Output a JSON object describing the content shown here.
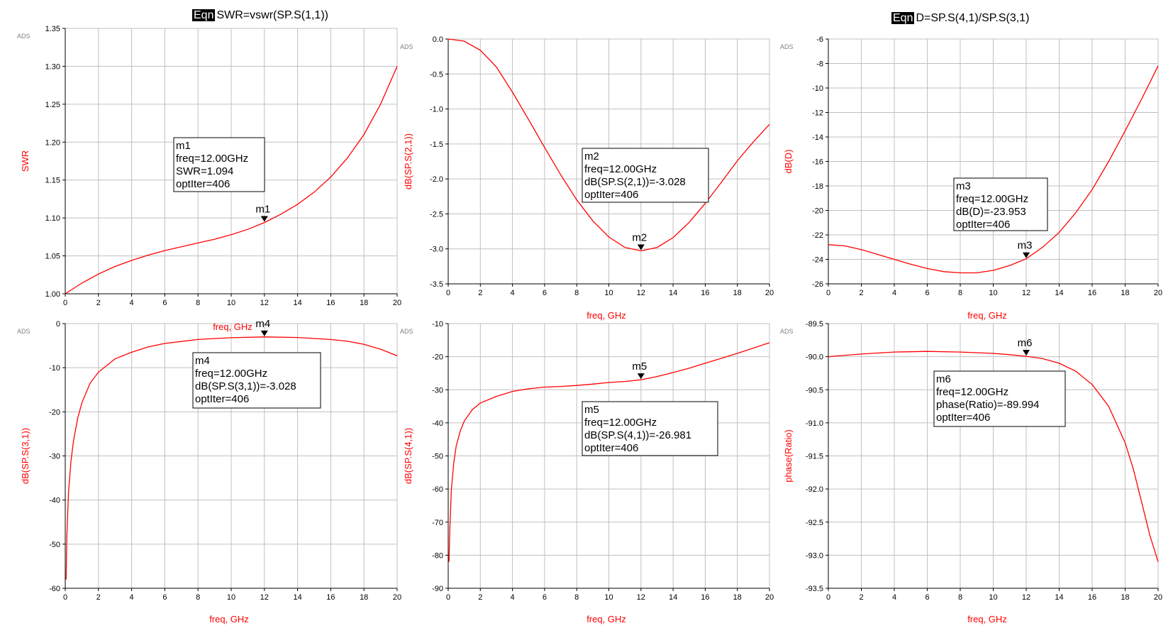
{
  "equations": [
    {
      "tag": "Eqn",
      "text": "SWR=vswr(SP.S(1,1))"
    },
    {
      "tag": "Eqn",
      "text": "D=SP.S(4,1)/SP.S(3,1)"
    }
  ],
  "colors": {
    "trace": "#ff0000",
    "grid": "#c0c0c0",
    "axis": "#000000",
    "axis_label": "#ff0000"
  },
  "chart_data": [
    {
      "type": "line",
      "watermark": "ADS",
      "xlabel": "",
      "ylabel": "SWR",
      "xlim": [
        0,
        20
      ],
      "ylim": [
        1.0,
        1.35
      ],
      "xticks": [
        0,
        2,
        4,
        6,
        8,
        10,
        12,
        14,
        16,
        18,
        20
      ],
      "yticks": [
        1.0,
        1.05,
        1.1,
        1.15,
        1.2,
        1.25,
        1.3,
        1.35
      ],
      "ytick_labels": [
        "1.00",
        "1.05",
        "1.10",
        "1.15",
        "1.20",
        "1.25",
        "1.30",
        "1.35"
      ],
      "grid": true,
      "series": [
        {
          "x": [
            0,
            1,
            2,
            3,
            4,
            5,
            6,
            7,
            8,
            9,
            10,
            11,
            12,
            13,
            14,
            15,
            16,
            17,
            18,
            19,
            20
          ],
          "y": [
            1.0,
            1.014,
            1.026,
            1.036,
            1.044,
            1.051,
            1.057,
            1.062,
            1.067,
            1.072,
            1.078,
            1.085,
            1.094,
            1.105,
            1.118,
            1.134,
            1.154,
            1.179,
            1.21,
            1.25,
            1.3
          ]
        }
      ],
      "marker": {
        "name": "m1",
        "x": 12,
        "y": 1.094
      },
      "annotation": {
        "lines": [
          "m1",
          "freq=12.00GHz",
          "SWR=1.094",
          "optIter=406"
        ]
      }
    },
    {
      "type": "line",
      "watermark": "ADS",
      "xlabel": "freq, GHz",
      "ylabel": "dB(SP.S(2,1))",
      "xlim": [
        0,
        20
      ],
      "ylim": [
        -3.5,
        0.0
      ],
      "xticks": [
        0,
        2,
        4,
        6,
        8,
        10,
        12,
        14,
        16,
        18,
        20
      ],
      "yticks": [
        -3.5,
        -3.0,
        -2.5,
        -2.0,
        -1.5,
        -1.0,
        -0.5,
        0.0
      ],
      "ytick_labels": [
        "-3.5",
        "-3.0",
        "-2.5",
        "-2.0",
        "-1.5",
        "-1.0",
        "-0.5",
        "0.0"
      ],
      "grid": true,
      "series": [
        {
          "x": [
            0,
            1,
            2,
            3,
            4,
            5,
            6,
            7,
            8,
            9,
            10,
            11,
            12,
            13,
            14,
            15,
            16,
            17,
            18,
            19,
            20
          ],
          "y": [
            0.0,
            -0.03,
            -0.16,
            -0.4,
            -0.76,
            -1.15,
            -1.55,
            -1.94,
            -2.3,
            -2.6,
            -2.83,
            -2.98,
            -3.028,
            -2.98,
            -2.84,
            -2.62,
            -2.35,
            -2.05,
            -1.74,
            -1.47,
            -1.22
          ]
        }
      ],
      "marker": {
        "name": "m2",
        "x": 12,
        "y": -3.028
      },
      "annotation": {
        "lines": [
          "m2",
          "freq=12.00GHz",
          "dB(SP.S(2,1))=-3.028",
          "optIter=406"
        ]
      }
    },
    {
      "type": "line",
      "watermark": "ADS",
      "xlabel": "freq, GHz",
      "ylabel": "dB(D)",
      "xlim": [
        0,
        20
      ],
      "ylim": [
        -26,
        -6
      ],
      "xticks": [
        0,
        2,
        4,
        6,
        8,
        10,
        12,
        14,
        16,
        18,
        20
      ],
      "yticks": [
        -26,
        -24,
        -22,
        -20,
        -18,
        -16,
        -14,
        -12,
        -10,
        -8,
        -6
      ],
      "ytick_labels": [
        "-26",
        "-24",
        "-22",
        "-20",
        "-18",
        "-16",
        "-14",
        "-12",
        "-10",
        "-8",
        "-6"
      ],
      "grid": true,
      "series": [
        {
          "x": [
            0,
            1,
            2,
            3,
            4,
            5,
            6,
            7,
            8,
            9,
            10,
            11,
            12,
            13,
            14,
            15,
            16,
            17,
            18,
            19,
            20
          ],
          "y": [
            -22.8,
            -22.9,
            -23.2,
            -23.6,
            -24.0,
            -24.4,
            -24.75,
            -25.0,
            -25.1,
            -25.1,
            -24.9,
            -24.5,
            -23.953,
            -23.0,
            -21.8,
            -20.2,
            -18.3,
            -16.0,
            -13.5,
            -10.9,
            -8.2
          ]
        }
      ],
      "marker": {
        "name": "m3",
        "x": 12,
        "y": -23.953
      },
      "annotation": {
        "lines": [
          "m3",
          "freq=12.00GHz",
          "dB(D)=-23.953",
          "optIter=406"
        ]
      }
    },
    {
      "type": "line",
      "watermark": "ADS",
      "xlabel": "freq, GHz",
      "ylabel": "dB(SP.S(3,1))",
      "xlim": [
        0,
        20
      ],
      "ylim": [
        -60,
        0
      ],
      "xticks": [
        0,
        2,
        4,
        6,
        8,
        10,
        12,
        14,
        16,
        18,
        20
      ],
      "yticks": [
        -60,
        -50,
        -40,
        -30,
        -20,
        -10,
        0
      ],
      "ytick_labels": [
        "-60",
        "-50",
        "-40",
        "-30",
        "-20",
        "-10",
        "0"
      ],
      "grid": true,
      "series": [
        {
          "x": [
            0.05,
            0.1,
            0.2,
            0.35,
            0.5,
            0.75,
            1,
            1.5,
            2,
            3,
            4,
            5,
            6,
            8,
            10,
            12,
            14,
            16,
            17,
            18,
            19,
            20
          ],
          "y": [
            -58,
            -48,
            -38,
            -31,
            -26.5,
            -21.5,
            -18,
            -13.5,
            -11,
            -8,
            -6.5,
            -5.3,
            -4.5,
            -3.6,
            -3.2,
            -3.028,
            -3.15,
            -3.6,
            -4.0,
            -4.7,
            -5.8,
            -7.3
          ]
        }
      ],
      "marker": {
        "name": "m4",
        "x": 12,
        "y": -3.028
      },
      "annotation": {
        "lines": [
          "m4",
          "freq=12.00GHz",
          "dB(SP.S(3,1))=-3.028",
          "optIter=406"
        ]
      }
    },
    {
      "type": "line",
      "watermark": "ADS",
      "xlabel": "freq, GHz",
      "ylabel": "dB(SP.S(4,1))",
      "xlim": [
        0,
        20
      ],
      "ylim": [
        -90,
        -10
      ],
      "xticks": [
        0,
        2,
        4,
        6,
        8,
        10,
        12,
        14,
        16,
        18,
        20
      ],
      "yticks": [
        -90,
        -80,
        -70,
        -60,
        -50,
        -40,
        -30,
        -20,
        -10
      ],
      "ytick_labels": [
        "-90",
        "-80",
        "-70",
        "-60",
        "-50",
        "-40",
        "-30",
        "-20",
        "-10"
      ],
      "grid": true,
      "series": [
        {
          "x": [
            0.05,
            0.1,
            0.2,
            0.35,
            0.5,
            0.75,
            1,
            1.5,
            2,
            3,
            4,
            5,
            6,
            7,
            8,
            9,
            10,
            11,
            12,
            13,
            14,
            15,
            16,
            17,
            18,
            19,
            20
          ],
          "y": [
            -82,
            -72,
            -60,
            -52,
            -47,
            -42.5,
            -39.5,
            -36,
            -34,
            -32,
            -30.5,
            -29.7,
            -29.2,
            -29.0,
            -28.7,
            -28.3,
            -27.8,
            -27.5,
            -26.981,
            -26.0,
            -24.8,
            -23.5,
            -22.0,
            -20.5,
            -19.0,
            -17.4,
            -15.8
          ]
        }
      ],
      "marker": {
        "name": "m5",
        "x": 12,
        "y": -26.981
      },
      "annotation": {
        "lines": [
          "m5",
          "freq=12.00GHz",
          "dB(SP.S(4,1))=-26.981",
          "optIter=406"
        ]
      }
    },
    {
      "type": "line",
      "watermark": "ADS",
      "xlabel": "freq, GHz",
      "ylabel": "phase(Ratio)",
      "xlim": [
        0,
        20
      ],
      "ylim": [
        -93.5,
        -89.5
      ],
      "xticks": [
        0,
        2,
        4,
        6,
        8,
        10,
        12,
        14,
        16,
        18,
        20
      ],
      "yticks": [
        -93.5,
        -93.0,
        -92.5,
        -92.0,
        -91.5,
        -91.0,
        -90.5,
        -90.0,
        -89.5
      ],
      "ytick_labels": [
        "-93.5",
        "-93.0",
        "-92.5",
        "-92.0",
        "-91.5",
        "-91.0",
        "-90.5",
        "-90.0",
        "-89.5"
      ],
      "grid": true,
      "series": [
        {
          "x": [
            0,
            2,
            4,
            6,
            8,
            10,
            11,
            12,
            13,
            14,
            15,
            16,
            17,
            18,
            18.5,
            19,
            19.5,
            20
          ],
          "y": [
            -90.0,
            -89.96,
            -89.93,
            -89.92,
            -89.93,
            -89.95,
            -89.97,
            -89.994,
            -90.03,
            -90.1,
            -90.22,
            -90.42,
            -90.75,
            -91.3,
            -91.7,
            -92.2,
            -92.7,
            -93.1
          ]
        }
      ],
      "marker": {
        "name": "m6",
        "x": 12,
        "y": -89.994
      },
      "annotation": {
        "lines": [
          "m6",
          "freq=12.00GHz",
          "phase(Ratio)=-89.994",
          "optIter=406"
        ]
      }
    }
  ],
  "stray_labels": [
    {
      "text": "freq, GHz"
    }
  ]
}
